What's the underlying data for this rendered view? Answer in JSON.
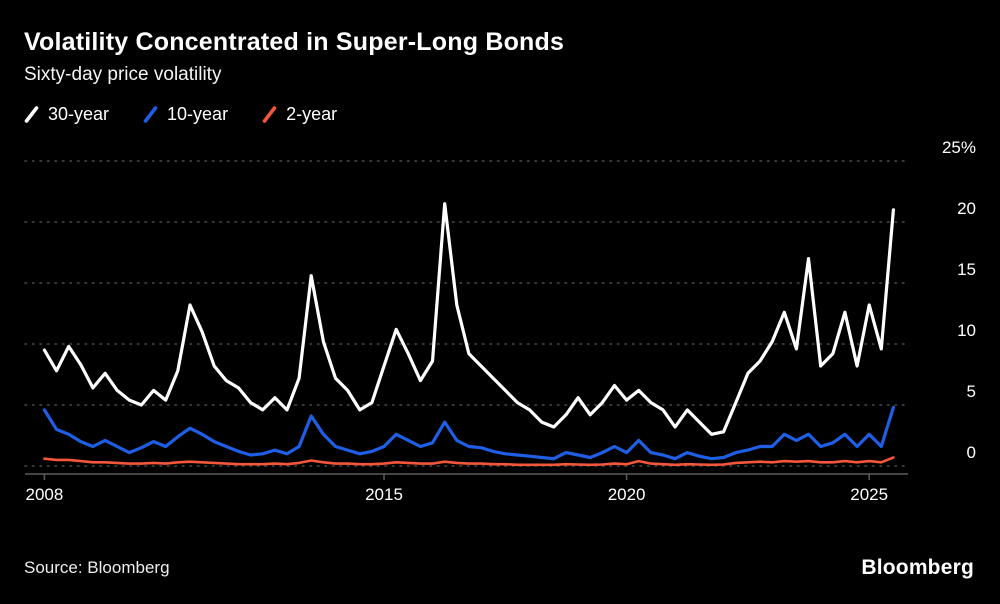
{
  "header": {
    "title": "Volatility Concentrated in Super-Long Bonds",
    "subtitle": "Sixty-day price volatility"
  },
  "legend": {
    "items": [
      {
        "label": "30-year",
        "color": "#ffffff"
      },
      {
        "label": "10-year",
        "color": "#1f5fe6"
      },
      {
        "label": "2-year",
        "color": "#f4563c"
      }
    ]
  },
  "footer": {
    "source": "Source: Bloomberg",
    "logo": "Bloomberg"
  },
  "chart_data": {
    "type": "line",
    "title": "Volatility Concentrated in Super-Long Bonds",
    "subtitle": "Sixty-day price volatility",
    "xlabel": "",
    "ylabel": "",
    "ylim": [
      0,
      25
    ],
    "xlim": [
      2007.6,
      2025.8
    ],
    "grid": "horizontal-dotted",
    "legend_position": "top-left",
    "y_ticks": [
      {
        "value": 0,
        "label": "0"
      },
      {
        "value": 5,
        "label": "5"
      },
      {
        "value": 10,
        "label": "10"
      },
      {
        "value": 15,
        "label": "15"
      },
      {
        "value": 20,
        "label": "20"
      },
      {
        "value": 25,
        "label": "25%"
      }
    ],
    "x_ticks": [
      {
        "value": 2008,
        "label": "2008"
      },
      {
        "value": 2015,
        "label": "2015"
      },
      {
        "value": 2020,
        "label": "2020"
      },
      {
        "value": 2025,
        "label": "2025"
      }
    ],
    "x": [
      2008,
      2008.25,
      2008.5,
      2008.75,
      2009,
      2009.25,
      2009.5,
      2009.75,
      2010,
      2010.25,
      2010.5,
      2010.75,
      2011,
      2011.25,
      2011.5,
      2011.75,
      2012,
      2012.25,
      2012.5,
      2012.75,
      2013,
      2013.25,
      2013.5,
      2013.75,
      2014,
      2014.25,
      2014.5,
      2014.75,
      2015,
      2015.25,
      2015.5,
      2015.75,
      2016,
      2016.25,
      2016.5,
      2016.75,
      2017,
      2017.25,
      2017.5,
      2017.75,
      2018,
      2018.25,
      2018.5,
      2018.75,
      2019,
      2019.25,
      2019.5,
      2019.75,
      2020,
      2020.25,
      2020.5,
      2020.75,
      2021,
      2021.25,
      2021.5,
      2021.75,
      2022,
      2022.25,
      2022.5,
      2022.75,
      2023,
      2023.25,
      2023.5,
      2023.75,
      2024,
      2024.25,
      2024.5,
      2024.75,
      2025,
      2025.25,
      2025.5
    ],
    "series": [
      {
        "name": "30-year",
        "color": "#ffffff",
        "values": [
          9.5,
          7.8,
          9.8,
          8.3,
          6.4,
          7.6,
          6.2,
          5.4,
          5.0,
          6.2,
          5.4,
          7.8,
          13.2,
          11.0,
          8.2,
          7.0,
          6.4,
          5.2,
          4.6,
          5.6,
          4.6,
          7.2,
          15.6,
          10.2,
          7.2,
          6.2,
          4.6,
          5.2,
          8.2,
          11.2,
          9.2,
          7.0,
          8.6,
          21.5,
          13.2,
          9.2,
          8.2,
          7.2,
          6.2,
          5.2,
          4.6,
          3.6,
          3.2,
          4.2,
          5.6,
          4.2,
          5.2,
          6.6,
          5.4,
          6.2,
          5.2,
          4.6,
          3.2,
          4.6,
          3.6,
          2.6,
          2.8,
          5.2,
          7.6,
          8.6,
          10.2,
          12.6,
          9.6,
          17.0,
          8.2,
          9.2,
          12.6,
          8.2,
          13.2,
          9.6,
          21.0
        ]
      },
      {
        "name": "10-year",
        "color": "#1f5fe6",
        "values": [
          4.6,
          3.0,
          2.6,
          2.0,
          1.6,
          2.1,
          1.6,
          1.1,
          1.5,
          2.0,
          1.6,
          2.4,
          3.1,
          2.6,
          2.0,
          1.6,
          1.2,
          0.9,
          1.0,
          1.3,
          1.0,
          1.6,
          4.1,
          2.6,
          1.6,
          1.3,
          1.0,
          1.2,
          1.6,
          2.6,
          2.1,
          1.6,
          1.9,
          3.6,
          2.1,
          1.6,
          1.5,
          1.2,
          1.0,
          0.9,
          0.8,
          0.7,
          0.6,
          1.1,
          0.9,
          0.7,
          1.1,
          1.6,
          1.1,
          2.1,
          1.1,
          0.9,
          0.6,
          1.1,
          0.8,
          0.6,
          0.7,
          1.1,
          1.3,
          1.6,
          1.6,
          2.6,
          2.1,
          2.6,
          1.6,
          1.9,
          2.6,
          1.6,
          2.6,
          1.6,
          4.8
        ]
      },
      {
        "name": "2-year",
        "color": "#f4563c",
        "values": [
          0.6,
          0.5,
          0.5,
          0.4,
          0.3,
          0.3,
          0.25,
          0.2,
          0.2,
          0.25,
          0.2,
          0.3,
          0.35,
          0.3,
          0.25,
          0.2,
          0.15,
          0.15,
          0.15,
          0.2,
          0.15,
          0.25,
          0.45,
          0.3,
          0.2,
          0.2,
          0.15,
          0.15,
          0.2,
          0.3,
          0.25,
          0.2,
          0.2,
          0.35,
          0.25,
          0.2,
          0.2,
          0.15,
          0.15,
          0.1,
          0.1,
          0.1,
          0.1,
          0.15,
          0.12,
          0.1,
          0.12,
          0.2,
          0.15,
          0.4,
          0.2,
          0.15,
          0.1,
          0.15,
          0.12,
          0.1,
          0.12,
          0.25,
          0.3,
          0.35,
          0.3,
          0.4,
          0.35,
          0.4,
          0.3,
          0.3,
          0.4,
          0.3,
          0.4,
          0.3,
          0.7
        ]
      }
    ]
  }
}
